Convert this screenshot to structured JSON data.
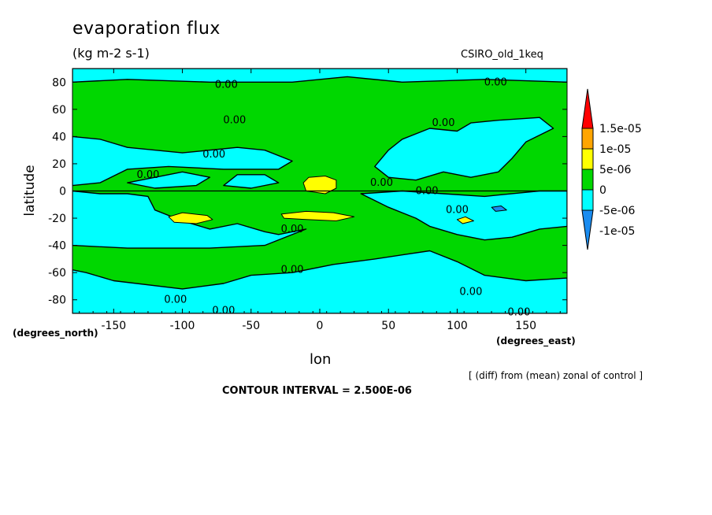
{
  "chart_data": {
    "type": "heatmap",
    "title": "evaporation flux",
    "subtitle": "(kg m-2 s-1)",
    "run_label": "CSIRO_old_1keq",
    "xlabel": "lon",
    "xunits": "(degrees_east)",
    "ylabel": "latitude",
    "yunits": "(degrees_north)",
    "note": "[ (diff) from (mean) zonal of control ]",
    "contour_interval_text": "CONTOUR INTERVAL = 2.500E-06",
    "xlim": [
      -180,
      180
    ],
    "ylim": [
      -90,
      90
    ],
    "x_ticks": [
      -150,
      -100,
      -50,
      0,
      50,
      100,
      150
    ],
    "y_ticks": [
      -80,
      -60,
      -40,
      -20,
      0,
      20,
      40,
      60,
      80
    ],
    "colorbar": {
      "labels": [
        "1.5e-05",
        "1e-05",
        "5e-06",
        "0",
        "-5e-06",
        "-1e-05"
      ],
      "levels": [
        -1e-05,
        -5e-06,
        0,
        5e-06,
        1e-05,
        1.5e-05
      ],
      "colors": [
        "#1a8cf0",
        "#00ffff",
        "#00d700",
        "#ffff00",
        "#ffa500",
        "#ff0000"
      ]
    },
    "contour_label": "0.00",
    "regions": [
      {
        "level": "neg",
        "pts": [
          [
            -180,
            90
          ],
          [
            180,
            90
          ],
          [
            180,
            80
          ],
          [
            120,
            82
          ],
          [
            60,
            80
          ],
          [
            20,
            84
          ],
          [
            -20,
            80
          ],
          [
            -80,
            80
          ],
          [
            -140,
            82
          ],
          [
            -180,
            80
          ]
        ]
      },
      {
        "level": "neg",
        "pts": [
          [
            -180,
            40
          ],
          [
            -160,
            38
          ],
          [
            -140,
            32
          ],
          [
            -100,
            28
          ],
          [
            -60,
            32
          ],
          [
            -40,
            30
          ],
          [
            -20,
            22
          ],
          [
            -30,
            16
          ],
          [
            -70,
            16
          ],
          [
            -110,
            18
          ],
          [
            -140,
            16
          ],
          [
            -160,
            6
          ],
          [
            -180,
            4
          ]
        ]
      },
      {
        "level": "neg",
        "pts": [
          [
            -140,
            6
          ],
          [
            -120,
            10
          ],
          [
            -100,
            14
          ],
          [
            -80,
            10
          ],
          [
            -90,
            4
          ],
          [
            -120,
            2
          ]
        ]
      },
      {
        "level": "neg",
        "pts": [
          [
            -60,
            12
          ],
          [
            -40,
            12
          ],
          [
            -30,
            6
          ],
          [
            -50,
            2
          ],
          [
            -70,
            4
          ]
        ]
      },
      {
        "level": "neg",
        "pts": [
          [
            40,
            18
          ],
          [
            50,
            30
          ],
          [
            60,
            38
          ],
          [
            80,
            46
          ],
          [
            100,
            44
          ],
          [
            110,
            50
          ],
          [
            130,
            52
          ],
          [
            160,
            54
          ],
          [
            170,
            46
          ],
          [
            150,
            36
          ],
          [
            140,
            24
          ],
          [
            130,
            14
          ],
          [
            110,
            10
          ],
          [
            90,
            14
          ],
          [
            70,
            8
          ],
          [
            50,
            10
          ]
        ]
      },
      {
        "level": "neg",
        "pts": [
          [
            30,
            -2
          ],
          [
            50,
            -12
          ],
          [
            70,
            -20
          ],
          [
            80,
            -26
          ],
          [
            100,
            -32
          ],
          [
            120,
            -36
          ],
          [
            140,
            -34
          ],
          [
            160,
            -28
          ],
          [
            180,
            -26
          ],
          [
            180,
            0
          ],
          [
            160,
            0
          ],
          [
            120,
            -4
          ],
          [
            90,
            -2
          ],
          [
            60,
            0
          ]
        ]
      },
      {
        "level": "neg",
        "pts": [
          [
            -180,
            0
          ],
          [
            -160,
            -2
          ],
          [
            -140,
            -2
          ],
          [
            -125,
            -4
          ],
          [
            -120,
            -14
          ],
          [
            -100,
            -22
          ],
          [
            -80,
            -28
          ],
          [
            -60,
            -24
          ],
          [
            -40,
            -30
          ],
          [
            -30,
            -32
          ],
          [
            -10,
            -28
          ],
          [
            -40,
            -40
          ],
          [
            -80,
            -42
          ],
          [
            -140,
            -42
          ],
          [
            -180,
            -40
          ]
        ]
      },
      {
        "level": "neg",
        "pts": [
          [
            -180,
            -58
          ],
          [
            -170,
            -60
          ],
          [
            -150,
            -66
          ],
          [
            -100,
            -72
          ],
          [
            -70,
            -68
          ],
          [
            -50,
            -62
          ],
          [
            -20,
            -60
          ],
          [
            10,
            -54
          ],
          [
            40,
            -50
          ],
          [
            80,
            -44
          ],
          [
            100,
            -52
          ],
          [
            120,
            -62
          ],
          [
            150,
            -66
          ],
          [
            180,
            -64
          ],
          [
            180,
            -90
          ],
          [
            -180,
            -90
          ]
        ]
      },
      {
        "level": "pos",
        "pts": [
          [
            -12,
            6
          ],
          [
            -8,
            10
          ],
          [
            4,
            11
          ],
          [
            12,
            8
          ],
          [
            12,
            2
          ],
          [
            4,
            -2
          ],
          [
            -10,
            0
          ]
        ]
      },
      {
        "level": "pos",
        "pts": [
          [
            -110,
            -19
          ],
          [
            -100,
            -16
          ],
          [
            -82,
            -18
          ],
          [
            -78,
            -21
          ],
          [
            -90,
            -24
          ],
          [
            -106,
            -23
          ]
        ]
      },
      {
        "level": "pos",
        "pts": [
          [
            -28,
            -17
          ],
          [
            -10,
            -15
          ],
          [
            10,
            -16
          ],
          [
            25,
            -19
          ],
          [
            12,
            -22
          ],
          [
            -10,
            -21
          ],
          [
            -26,
            -20
          ]
        ]
      },
      {
        "level": "pos",
        "pts": [
          [
            100,
            -21
          ],
          [
            106,
            -19
          ],
          [
            112,
            -22
          ],
          [
            104,
            -24
          ]
        ]
      },
      {
        "level": "neg2",
        "pts": [
          [
            125,
            -12
          ],
          [
            132,
            -11
          ],
          [
            136,
            -14
          ],
          [
            128,
            -15
          ]
        ]
      }
    ],
    "labels_0": [
      {
        "lon": -68,
        "lat": 78
      },
      {
        "lon": 128,
        "lat": 80
      },
      {
        "lon": -62,
        "lat": 52
      },
      {
        "lon": 90,
        "lat": 50
      },
      {
        "lon": -77,
        "lat": 27
      },
      {
        "lon": -125,
        "lat": 12
      },
      {
        "lon": 45,
        "lat": 6
      },
      {
        "lon": 78,
        "lat": 0
      },
      {
        "lon": 100,
        "lat": -14
      },
      {
        "lon": -20,
        "lat": -28
      },
      {
        "lon": -20,
        "lat": -58
      },
      {
        "lon": -105,
        "lat": -80
      },
      {
        "lon": -70,
        "lat": -88
      },
      {
        "lon": 110,
        "lat": -74
      },
      {
        "lon": 145,
        "lat": -89
      }
    ]
  }
}
